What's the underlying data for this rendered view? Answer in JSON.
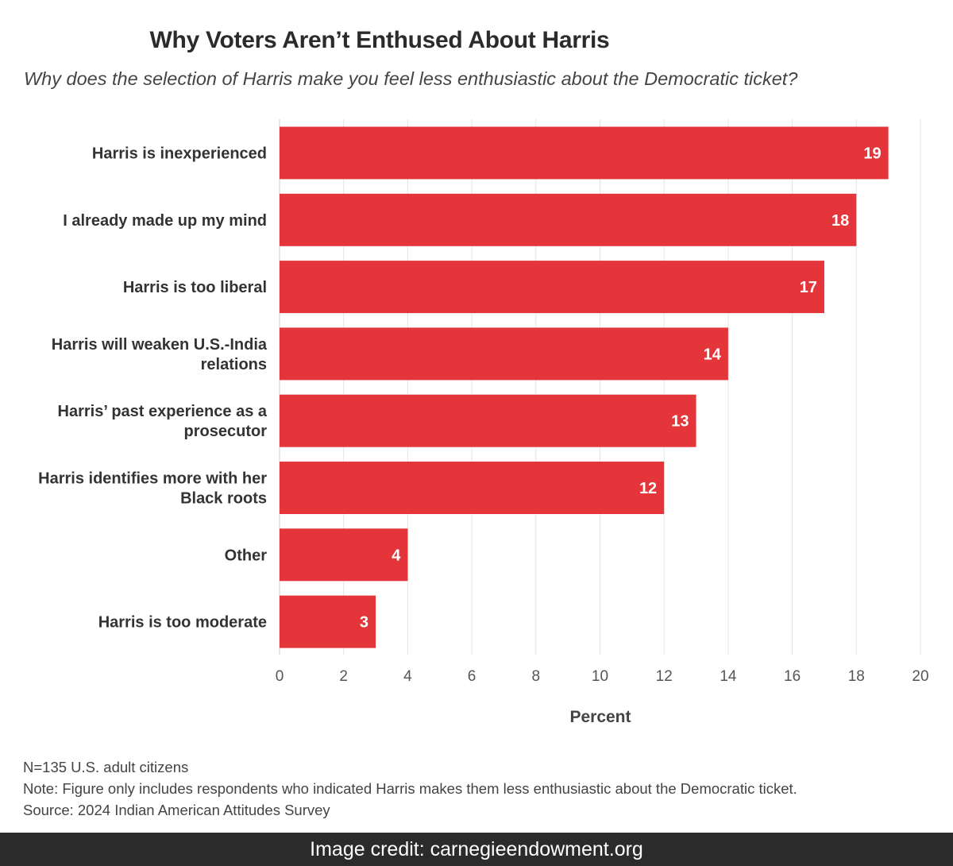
{
  "chart_data": {
    "type": "bar",
    "orientation": "horizontal",
    "title": "Why Voters Aren’t Enthused About Harris",
    "subtitle": "Why does the selection of Harris make you feel less enthusiastic about the Democratic ticket?",
    "categories": [
      "Harris is inexperienced",
      "I already made up my mind",
      "Harris is too liberal",
      "Harris will weaken U.S.-India relations",
      "Harris’ past experience as a prosecutor",
      "Harris identifies more with her Black roots",
      "Other",
      "Harris is too moderate"
    ],
    "category_lines": [
      [
        "Harris is inexperienced"
      ],
      [
        "I already made up my mind"
      ],
      [
        "Harris is too liberal"
      ],
      [
        "Harris will weaken U.S.-India",
        "relations"
      ],
      [
        "Harris’ past experience as a",
        "prosecutor"
      ],
      [
        "Harris identifies more with her",
        "Black roots"
      ],
      [
        "Other"
      ],
      [
        "Harris is too moderate"
      ]
    ],
    "values": [
      19,
      18,
      17,
      14,
      13,
      12,
      4,
      3
    ],
    "xlabel": "Percent",
    "ylabel": "",
    "xlim": [
      0,
      20
    ],
    "xticks": [
      0,
      2,
      4,
      6,
      8,
      10,
      12,
      14,
      16,
      18,
      20
    ],
    "grid": true,
    "bar_color": "#e3353a"
  },
  "footnotes": {
    "sample": "N=135 U.S. adult citizens",
    "note": "Note: Figure only includes respondents who indicated Harris makes them less enthusiastic about the Democratic ticket.",
    "source": "Source: 2024 Indian American Attitudes Survey"
  },
  "credit": "Image credit: carnegieendowment.org"
}
